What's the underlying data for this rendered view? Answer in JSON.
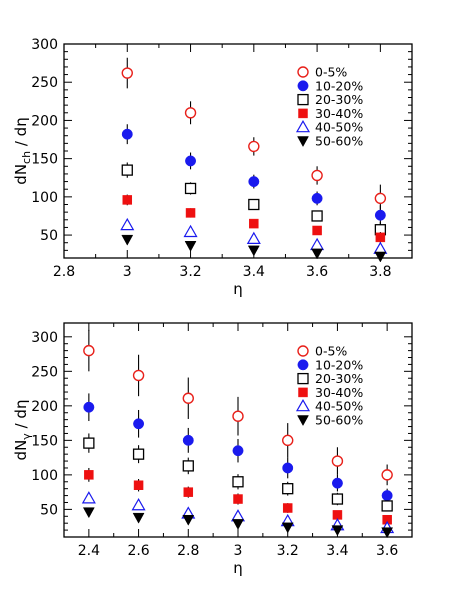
{
  "chart_data": [
    {
      "type": "scatter",
      "xlabel": "η",
      "ylabel_main": "dN",
      "ylabel_sub": "ch",
      "ylabel_tail": " / dη",
      "xlim": [
        2.8,
        3.9
      ],
      "ylim": [
        20,
        300
      ],
      "xticks": [
        2.8,
        3.0,
        3.2,
        3.4,
        3.6,
        3.8
      ],
      "xtick_labels": [
        "2.8",
        "3",
        "3.2",
        "3.4",
        "3.6",
        "3.8"
      ],
      "yticks": [
        50,
        100,
        150,
        200,
        250,
        300
      ],
      "ytick_labels": [
        "50",
        "100",
        "150",
        "200",
        "250",
        "300"
      ],
      "legend_position": "top-right",
      "x": [
        3.0,
        3.2,
        3.4,
        3.6,
        3.8
      ],
      "series": [
        {
          "name": "0-5%",
          "marker": "circle-open",
          "color": "#e8201a",
          "values": [
            262,
            210,
            166,
            128,
            98
          ],
          "errors": [
            20,
            15,
            12,
            12,
            18
          ]
        },
        {
          "name": "10-20%",
          "marker": "circle-filled",
          "color": "#1a1aee",
          "values": [
            182,
            147,
            120,
            98,
            76
          ],
          "errors": [
            13,
            11,
            9,
            9,
            13
          ]
        },
        {
          "name": "20-30%",
          "marker": "square-open",
          "color": "#000000",
          "values": [
            135,
            111,
            90,
            75,
            57
          ],
          "errors": [
            10,
            8,
            7,
            7,
            10
          ]
        },
        {
          "name": "30-40%",
          "marker": "square-filled",
          "color": "#ee1010",
          "values": [
            96,
            79,
            65,
            56,
            47
          ],
          "errors": [
            7,
            6,
            5,
            5,
            7
          ]
        },
        {
          "name": "40-50%",
          "marker": "triangle-open",
          "color": "#1a1aee",
          "values": [
            63,
            54,
            45,
            37,
            32
          ],
          "errors": [
            4,
            4,
            4,
            4,
            4
          ]
        },
        {
          "name": "50-60%",
          "marker": "triangle-down-filled",
          "color": "#000000",
          "values": [
            44,
            36,
            30,
            26,
            22
          ],
          "errors": [
            3,
            3,
            3,
            3,
            3
          ]
        }
      ]
    },
    {
      "type": "scatter",
      "xlabel": "η",
      "ylabel_main": "dN",
      "ylabel_sub": "γ",
      "ylabel_tail": " / dη",
      "xlim": [
        2.3,
        3.7
      ],
      "ylim": [
        10,
        320
      ],
      "xticks": [
        2.4,
        2.6,
        2.8,
        3.0,
        3.2,
        3.4,
        3.6
      ],
      "xtick_labels": [
        "2.4",
        "2.6",
        "2.8",
        "3",
        "3.2",
        "3.4",
        "3.6"
      ],
      "yticks": [
        50,
        100,
        150,
        200,
        250,
        300
      ],
      "ytick_labels": [
        "50",
        "100",
        "150",
        "200",
        "250",
        "300"
      ],
      "legend_position": "top-right",
      "x": [
        2.4,
        2.6,
        2.8,
        3.0,
        3.2,
        3.4,
        3.6
      ],
      "series": [
        {
          "name": "0-5%",
          "marker": "circle-open",
          "color": "#e8201a",
          "values": [
            280,
            244,
            211,
            185,
            150,
            120,
            100
          ],
          "errors": [
            30,
            30,
            30,
            28,
            25,
            20,
            15
          ]
        },
        {
          "name": "10-20%",
          "marker": "circle-filled",
          "color": "#1a1aee",
          "values": [
            198,
            174,
            150,
            135,
            110,
            88,
            70
          ],
          "errors": [
            20,
            20,
            18,
            17,
            15,
            12,
            10
          ]
        },
        {
          "name": "20-30%",
          "marker": "square-open",
          "color": "#000000",
          "values": [
            146,
            130,
            113,
            90,
            80,
            65,
            55
          ],
          "errors": [
            14,
            13,
            12,
            11,
            10,
            9,
            8
          ]
        },
        {
          "name": "30-40%",
          "marker": "square-filled",
          "color": "#ee1010",
          "values": [
            100,
            85,
            75,
            65,
            52,
            42,
            35
          ],
          "errors": [
            10,
            9,
            8,
            8,
            7,
            6,
            5
          ]
        },
        {
          "name": "40-50%",
          "marker": "triangle-open",
          "color": "#1a1aee",
          "values": [
            66,
            56,
            44,
            40,
            33,
            27,
            23
          ],
          "errors": [
            6,
            6,
            6,
            5,
            5,
            5,
            4
          ]
        },
        {
          "name": "50-60%",
          "marker": "triangle-down-filled",
          "color": "#000000",
          "values": [
            46,
            38,
            35,
            29,
            24,
            20,
            17
          ],
          "errors": [
            5,
            5,
            5,
            5,
            4,
            4,
            4
          ]
        }
      ]
    }
  ]
}
